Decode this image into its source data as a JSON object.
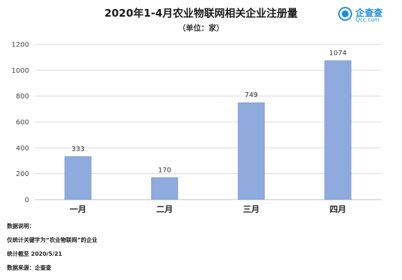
{
  "header": {
    "title": "2020年1-4月农业物联网相关企业注册量",
    "subtitle": "（单位：家）"
  },
  "logo": {
    "name": "企查查",
    "sub": "Qcc.com"
  },
  "colors": {
    "bar": "#8faadc",
    "bar_edge": "#6f8fc9",
    "grid": "#d9d9d9",
    "logo": "#1b8ee0"
  },
  "chart_data": {
    "type": "bar",
    "categories": [
      "一月",
      "二月",
      "三月",
      "四月"
    ],
    "values": [
      333,
      170,
      749,
      1074
    ],
    "ylim": [
      0,
      1200
    ],
    "yticks": [
      0,
      200,
      400,
      600,
      800,
      1000,
      1200
    ],
    "grid": true,
    "data_labels": true
  },
  "notes": {
    "heading": "数据说明：",
    "line1": "仅统计关键字为“农业物联网”的企业",
    "line2": "统计截至 2020/5/21",
    "line3": "数据来源：企查查"
  }
}
